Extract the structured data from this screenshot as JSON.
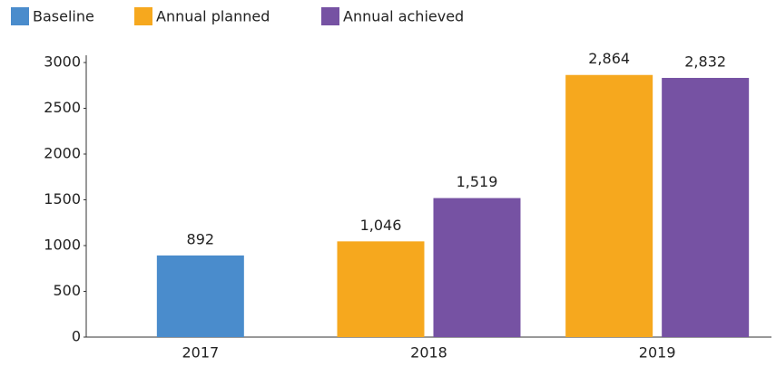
{
  "chart_data": {
    "type": "bar",
    "categories": [
      "2017",
      "2018",
      "2019"
    ],
    "series": [
      {
        "name": "Baseline",
        "color": "#4a8ccc",
        "values": [
          892,
          null,
          null
        ],
        "value_labels": [
          "892",
          null,
          null
        ]
      },
      {
        "name": "Annual planned",
        "color": "#f6a81e",
        "values": [
          null,
          1046,
          2864
        ],
        "value_labels": [
          null,
          "1,046",
          "2,864"
        ]
      },
      {
        "name": "Annual achieved",
        "color": "#7652a3",
        "values": [
          null,
          1519,
          2832
        ],
        "value_labels": [
          null,
          "1,519",
          "2,832"
        ]
      }
    ],
    "ylim": [
      0,
      3000
    ],
    "yticks": [
      0,
      500,
      1000,
      1500,
      2000,
      2500,
      3000
    ],
    "grid": false,
    "legend": "top"
  }
}
